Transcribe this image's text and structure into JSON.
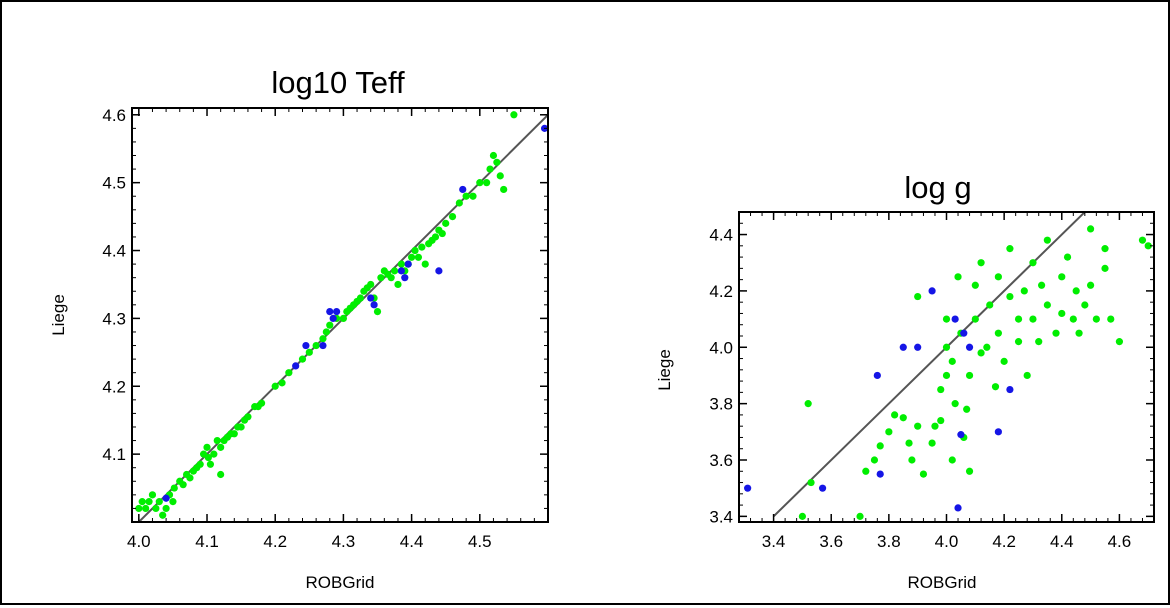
{
  "chart_data": [
    {
      "type": "scatter",
      "title": "log10 Teff",
      "xlabel": "ROBGrid",
      "ylabel": "Liege",
      "xlim": [
        3.99,
        4.6
      ],
      "ylim": [
        4.0,
        4.61
      ],
      "xticks": [
        "4.0",
        "4.1",
        "4.2",
        "4.3",
        "4.4",
        "4.5"
      ],
      "yticks": [
        "4.1",
        "4.2",
        "4.3",
        "4.4",
        "4.5",
        "4.6"
      ],
      "reference_line": [
        [
          3.99,
          3.99
        ],
        [
          4.6,
          4.6
        ]
      ],
      "colors": {
        "series_1": "#00ee00",
        "series_2": "#1515e6",
        "line": "#555555"
      },
      "series": [
        {
          "values": [
            [
              4.0,
              4.02
            ],
            [
              4.005,
              4.03
            ],
            [
              4.01,
              4.02
            ],
            [
              4.015,
              4.03
            ],
            [
              4.02,
              4.04
            ],
            [
              4.025,
              4.02
            ],
            [
              4.03,
              4.03
            ],
            [
              4.035,
              4.01
            ],
            [
              4.04,
              4.02
            ],
            [
              4.045,
              4.04
            ],
            [
              4.05,
              4.03
            ],
            [
              4.052,
              4.05
            ],
            [
              4.06,
              4.06
            ],
            [
              4.065,
              4.055
            ],
            [
              4.07,
              4.07
            ],
            [
              4.075,
              4.065
            ],
            [
              4.08,
              4.075
            ],
            [
              4.085,
              4.08
            ],
            [
              4.09,
              4.085
            ],
            [
              4.095,
              4.1
            ],
            [
              4.1,
              4.11
            ],
            [
              4.102,
              4.095
            ],
            [
              4.105,
              4.085
            ],
            [
              4.11,
              4.1
            ],
            [
              4.115,
              4.12
            ],
            [
              4.12,
              4.11
            ],
            [
              4.12,
              4.07
            ],
            [
              4.125,
              4.12
            ],
            [
              4.13,
              4.125
            ],
            [
              4.135,
              4.13
            ],
            [
              4.14,
              4.13
            ],
            [
              4.145,
              4.14
            ],
            [
              4.15,
              4.14
            ],
            [
              4.155,
              4.15
            ],
            [
              4.16,
              4.155
            ],
            [
              4.17,
              4.17
            ],
            [
              4.175,
              4.17
            ],
            [
              4.18,
              4.175
            ],
            [
              4.2,
              4.2
            ],
            [
              4.21,
              4.205
            ],
            [
              4.22,
              4.22
            ],
            [
              4.24,
              4.24
            ],
            [
              4.25,
              4.25
            ],
            [
              4.26,
              4.26
            ],
            [
              4.27,
              4.27
            ],
            [
              4.275,
              4.28
            ],
            [
              4.28,
              4.29
            ],
            [
              4.29,
              4.3
            ],
            [
              4.3,
              4.3
            ],
            [
              4.305,
              4.31
            ],
            [
              4.31,
              4.315
            ],
            [
              4.315,
              4.32
            ],
            [
              4.32,
              4.325
            ],
            [
              4.325,
              4.33
            ],
            [
              4.33,
              4.34
            ],
            [
              4.335,
              4.345
            ],
            [
              4.34,
              4.35
            ],
            [
              4.345,
              4.33
            ],
            [
              4.35,
              4.31
            ],
            [
              4.355,
              4.36
            ],
            [
              4.36,
              4.37
            ],
            [
              4.365,
              4.365
            ],
            [
              4.37,
              4.36
            ],
            [
              4.375,
              4.37
            ],
            [
              4.38,
              4.35
            ],
            [
              4.385,
              4.38
            ],
            [
              4.39,
              4.37
            ],
            [
              4.395,
              4.38
            ],
            [
              4.4,
              4.39
            ],
            [
              4.405,
              4.4
            ],
            [
              4.41,
              4.39
            ],
            [
              4.415,
              4.405
            ],
            [
              4.42,
              4.38
            ],
            [
              4.425,
              4.41
            ],
            [
              4.43,
              4.415
            ],
            [
              4.435,
              4.42
            ],
            [
              4.44,
              4.43
            ],
            [
              4.445,
              4.425
            ],
            [
              4.45,
              4.44
            ],
            [
              4.46,
              4.45
            ],
            [
              4.47,
              4.47
            ],
            [
              4.48,
              4.48
            ],
            [
              4.49,
              4.48
            ],
            [
              4.5,
              4.5
            ],
            [
              4.51,
              4.5
            ],
            [
              4.515,
              4.52
            ],
            [
              4.52,
              4.54
            ],
            [
              4.525,
              4.53
            ],
            [
              4.53,
              4.51
            ],
            [
              4.535,
              4.49
            ],
            [
              4.55,
              4.6
            ]
          ]
        },
        {
          "values": [
            [
              4.04,
              4.035
            ],
            [
              4.23,
              4.23
            ],
            [
              4.245,
              4.26
            ],
            [
              4.27,
              4.26
            ],
            [
              4.28,
              4.31
            ],
            [
              4.285,
              4.3
            ],
            [
              4.29,
              4.31
            ],
            [
              4.385,
              4.37
            ],
            [
              4.39,
              4.36
            ],
            [
              4.395,
              4.38
            ],
            [
              4.44,
              4.37
            ],
            [
              4.475,
              4.49
            ],
            [
              4.595,
              4.58
            ],
            [
              4.34,
              4.33
            ],
            [
              4.345,
              4.32
            ]
          ]
        }
      ]
    },
    {
      "type": "scatter",
      "title": "log g",
      "xlabel": "ROBGrid",
      "ylabel": "Liege",
      "xlim": [
        3.28,
        4.72
      ],
      "ylim": [
        3.38,
        4.48
      ],
      "xticks": [
        "3.4",
        "3.6",
        "3.8",
        "4.0",
        "4.2",
        "4.4",
        "4.6"
      ],
      "yticks": [
        "3.4",
        "3.6",
        "3.8",
        "4.0",
        "4.2",
        "4.4"
      ],
      "reference_line": [
        [
          3.4,
          3.4
        ],
        [
          4.5,
          4.5
        ]
      ],
      "colors": {
        "series_1": "#00ee00",
        "series_2": "#1515e6",
        "line": "#555555"
      },
      "series": [
        {
          "values": [
            [
              3.5,
              3.4
            ],
            [
              3.52,
              3.8
            ],
            [
              3.53,
              3.52
            ],
            [
              3.7,
              3.4
            ],
            [
              3.72,
              3.56
            ],
            [
              3.75,
              3.6
            ],
            [
              3.77,
              3.65
            ],
            [
              3.8,
              3.7
            ],
            [
              3.82,
              3.76
            ],
            [
              3.85,
              3.75
            ],
            [
              3.87,
              3.66
            ],
            [
              3.88,
              3.6
            ],
            [
              3.9,
              3.72
            ],
            [
              3.9,
              4.18
            ],
            [
              3.92,
              3.55
            ],
            [
              3.95,
              3.66
            ],
            [
              3.96,
              3.72
            ],
            [
              3.98,
              3.74
            ],
            [
              3.98,
              3.85
            ],
            [
              4.0,
              3.9
            ],
            [
              4.0,
              4.0
            ],
            [
              4.0,
              4.1
            ],
            [
              4.02,
              3.6
            ],
            [
              4.02,
              3.95
            ],
            [
              4.03,
              3.8
            ],
            [
              4.04,
              4.25
            ],
            [
              4.05,
              4.05
            ],
            [
              4.06,
              3.68
            ],
            [
              4.07,
              3.78
            ],
            [
              4.08,
              3.56
            ],
            [
              4.08,
              3.9
            ],
            [
              4.1,
              4.1
            ],
            [
              4.1,
              4.22
            ],
            [
              4.12,
              3.98
            ],
            [
              4.12,
              4.3
            ],
            [
              4.14,
              4.0
            ],
            [
              4.15,
              4.15
            ],
            [
              4.17,
              3.86
            ],
            [
              4.18,
              4.05
            ],
            [
              4.18,
              4.25
            ],
            [
              4.2,
              3.95
            ],
            [
              4.22,
              4.18
            ],
            [
              4.22,
              4.35
            ],
            [
              4.25,
              4.02
            ],
            [
              4.25,
              4.1
            ],
            [
              4.27,
              4.2
            ],
            [
              4.28,
              3.9
            ],
            [
              4.3,
              4.1
            ],
            [
              4.3,
              4.3
            ],
            [
              4.32,
              4.02
            ],
            [
              4.33,
              4.22
            ],
            [
              4.35,
              4.15
            ],
            [
              4.35,
              4.38
            ],
            [
              4.38,
              4.05
            ],
            [
              4.4,
              4.25
            ],
            [
              4.4,
              4.12
            ],
            [
              4.42,
              4.32
            ],
            [
              4.44,
              4.1
            ],
            [
              4.45,
              4.2
            ],
            [
              4.46,
              4.05
            ],
            [
              4.48,
              4.15
            ],
            [
              4.5,
              4.22
            ],
            [
              4.5,
              4.42
            ],
            [
              4.52,
              4.1
            ],
            [
              4.55,
              4.28
            ],
            [
              4.55,
              4.35
            ],
            [
              4.57,
              4.1
            ],
            [
              4.6,
              4.02
            ],
            [
              4.68,
              4.38
            ],
            [
              4.7,
              4.36
            ]
          ]
        },
        {
          "values": [
            [
              3.31,
              3.5
            ],
            [
              3.57,
              3.5
            ],
            [
              3.76,
              3.9
            ],
            [
              3.77,
              3.55
            ],
            [
              3.85,
              4.0
            ],
            [
              3.9,
              4.0
            ],
            [
              3.95,
              4.2
            ],
            [
              4.03,
              4.1
            ],
            [
              4.04,
              3.43
            ],
            [
              4.05,
              3.69
            ],
            [
              4.06,
              4.05
            ],
            [
              4.08,
              4.0
            ],
            [
              4.18,
              3.7
            ],
            [
              4.22,
              3.85
            ]
          ]
        }
      ]
    }
  ]
}
